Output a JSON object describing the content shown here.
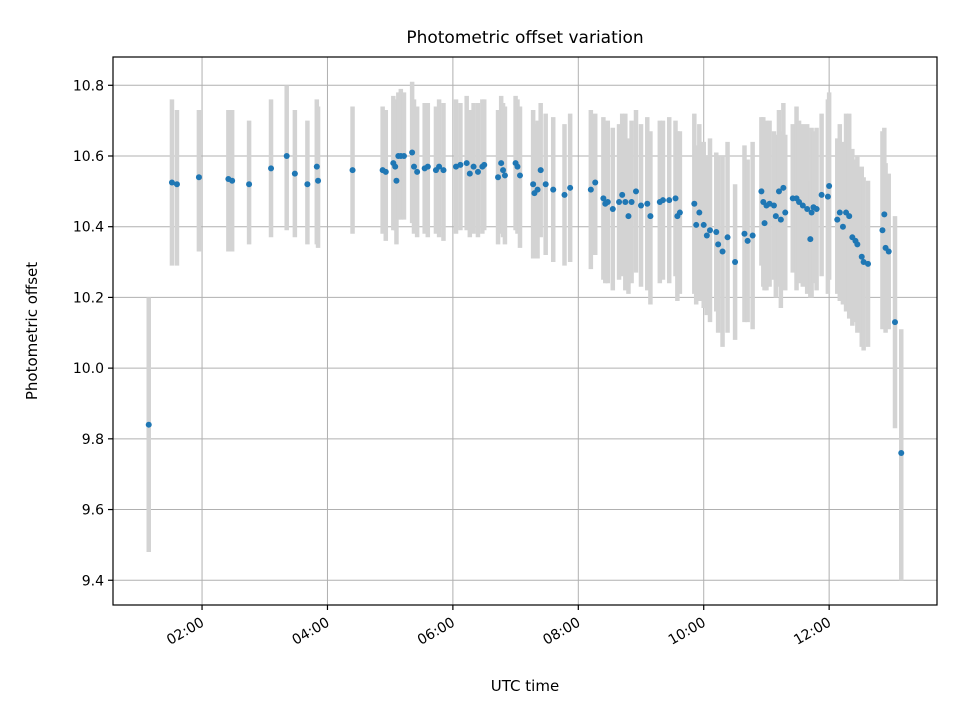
{
  "chart_data": {
    "type": "scatter",
    "title": "Photometric offset variation",
    "xlabel": "UTC time",
    "ylabel": "Photometric offset",
    "x_unit": "hours UTC",
    "xlim": [
      0.58,
      13.72
    ],
    "ylim": [
      9.33,
      10.88
    ],
    "xticks": [
      {
        "value": 2,
        "label": "02:00"
      },
      {
        "value": 4,
        "label": "04:00"
      },
      {
        "value": 6,
        "label": "06:00"
      },
      {
        "value": 8,
        "label": "08:00"
      },
      {
        "value": 10,
        "label": "10:00"
      },
      {
        "value": 12,
        "label": "12:00"
      }
    ],
    "yticks": [
      {
        "value": 9.4,
        "label": "9.4"
      },
      {
        "value": 9.6,
        "label": "9.6"
      },
      {
        "value": 9.8,
        "label": "9.8"
      },
      {
        "value": 10.0,
        "label": "10.0"
      },
      {
        "value": 10.2,
        "label": "10.2"
      },
      {
        "value": 10.4,
        "label": "10.4"
      },
      {
        "value": 10.6,
        "label": "10.6"
      },
      {
        "value": 10.8,
        "label": "10.8"
      }
    ],
    "grid": true,
    "legend": false,
    "colors": {
      "marker": "#1f77b4",
      "errorbar": "#d3d3d3",
      "grid": "#b0b0b0"
    },
    "series": [
      {
        "x": [
          1.15,
          1.52,
          1.6,
          1.95,
          2.42,
          2.48,
          2.75,
          3.1,
          3.35,
          3.48,
          3.68,
          3.83,
          3.85,
          4.4,
          4.88,
          4.93,
          5.05,
          5.08,
          5.1,
          5.13,
          5.17,
          5.22,
          5.35,
          5.38,
          5.43,
          5.55,
          5.6,
          5.73,
          5.78,
          5.85,
          6.05,
          6.12,
          6.22,
          6.27,
          6.33,
          6.4,
          6.47,
          6.5,
          6.72,
          6.77,
          6.8,
          6.83,
          7.0,
          7.03,
          7.07,
          7.28,
          7.3,
          7.35,
          7.4,
          7.48,
          7.6,
          7.78,
          7.87,
          8.2,
          8.27,
          8.4,
          8.43,
          8.47,
          8.55,
          8.65,
          8.7,
          8.75,
          8.8,
          8.85,
          8.92,
          9.0,
          9.1,
          9.15,
          9.3,
          9.35,
          9.45,
          9.55,
          9.58,
          9.62,
          9.85,
          9.88,
          9.93,
          10.0,
          10.05,
          10.1,
          10.2,
          10.23,
          10.3,
          10.38,
          10.5,
          10.65,
          10.7,
          10.78,
          10.92,
          10.95,
          10.97,
          11.0,
          11.05,
          11.12,
          11.15,
          11.2,
          11.23,
          11.27,
          11.3,
          11.42,
          11.48,
          11.52,
          11.58,
          11.65,
          11.7,
          11.72,
          11.75,
          11.8,
          11.88,
          11.98,
          12.0,
          12.13,
          12.17,
          12.22,
          12.27,
          12.32,
          12.37,
          12.42,
          12.45,
          12.52,
          12.55,
          12.62,
          12.85,
          12.88,
          12.9,
          12.95,
          13.05,
          13.15
        ],
        "y": [
          9.84,
          10.525,
          10.52,
          10.54,
          10.535,
          10.53,
          10.52,
          10.565,
          10.6,
          10.55,
          10.52,
          10.57,
          10.53,
          10.56,
          10.56,
          10.555,
          10.58,
          10.57,
          10.53,
          10.6,
          10.6,
          10.6,
          10.61,
          10.57,
          10.555,
          10.565,
          10.57,
          10.56,
          10.57,
          10.56,
          10.57,
          10.575,
          10.58,
          10.55,
          10.57,
          10.555,
          10.57,
          10.575,
          10.54,
          10.58,
          10.56,
          10.545,
          10.58,
          10.57,
          10.545,
          10.52,
          10.495,
          10.505,
          10.56,
          10.52,
          10.505,
          10.49,
          10.51,
          10.505,
          10.525,
          10.48,
          10.465,
          10.47,
          10.45,
          10.47,
          10.49,
          10.47,
          10.43,
          10.47,
          10.5,
          10.46,
          10.465,
          10.43,
          10.47,
          10.475,
          10.475,
          10.48,
          10.43,
          10.44,
          10.465,
          10.405,
          10.44,
          10.405,
          10.375,
          10.39,
          10.385,
          10.35,
          10.33,
          10.37,
          10.3,
          10.38,
          10.36,
          10.375,
          10.5,
          10.47,
          10.41,
          10.46,
          10.465,
          10.46,
          10.43,
          10.5,
          10.42,
          10.51,
          10.44,
          10.48,
          10.48,
          10.47,
          10.46,
          10.45,
          10.365,
          10.44,
          10.455,
          10.45,
          10.49,
          10.485,
          10.515,
          10.42,
          10.44,
          10.4,
          10.44,
          10.43,
          10.37,
          10.36,
          10.35,
          10.315,
          10.3,
          10.295,
          10.39,
          10.435,
          10.34,
          10.33,
          10.13,
          9.76
        ],
        "yerr_low": [
          9.48,
          10.29,
          10.29,
          10.33,
          10.33,
          10.33,
          10.35,
          10.37,
          10.39,
          10.37,
          10.35,
          10.35,
          10.34,
          10.38,
          10.38,
          10.36,
          10.39,
          10.39,
          10.35,
          10.42,
          10.42,
          10.42,
          10.41,
          10.38,
          10.37,
          10.38,
          10.37,
          10.38,
          10.37,
          10.36,
          10.38,
          10.39,
          10.39,
          10.37,
          10.38,
          10.37,
          10.38,
          10.39,
          10.35,
          10.38,
          10.37,
          10.35,
          10.39,
          10.38,
          10.34,
          10.31,
          10.31,
          10.31,
          10.37,
          10.32,
          10.3,
          10.29,
          10.3,
          10.28,
          10.32,
          10.25,
          10.24,
          10.24,
          10.22,
          10.25,
          10.26,
          10.22,
          10.21,
          10.24,
          10.27,
          10.23,
          10.22,
          10.18,
          10.24,
          10.25,
          10.24,
          10.26,
          10.19,
          10.21,
          10.21,
          10.18,
          10.19,
          10.17,
          10.15,
          10.13,
          10.16,
          10.1,
          10.06,
          10.1,
          10.08,
          10.13,
          10.13,
          10.11,
          10.29,
          10.23,
          10.22,
          10.22,
          10.23,
          10.25,
          10.2,
          10.23,
          10.17,
          10.27,
          10.22,
          10.27,
          10.22,
          10.24,
          10.23,
          10.21,
          10.2,
          10.2,
          10.24,
          10.22,
          10.26,
          10.21,
          10.25,
          10.21,
          10.19,
          10.18,
          10.16,
          10.14,
          10.12,
          10.13,
          10.1,
          10.06,
          10.05,
          10.06,
          10.11,
          10.24,
          10.1,
          10.11,
          9.83,
          9.4
        ],
        "yerr_high": [
          10.2,
          10.76,
          10.73,
          10.73,
          10.73,
          10.73,
          10.7,
          10.76,
          10.8,
          10.73,
          10.7,
          10.76,
          10.74,
          10.74,
          10.74,
          10.73,
          10.77,
          10.76,
          10.73,
          10.78,
          10.79,
          10.78,
          10.81,
          10.76,
          10.74,
          10.75,
          10.75,
          10.74,
          10.76,
          10.75,
          10.76,
          10.75,
          10.77,
          10.73,
          10.75,
          10.75,
          10.76,
          10.76,
          10.73,
          10.77,
          10.75,
          10.74,
          10.77,
          10.76,
          10.74,
          10.73,
          10.69,
          10.7,
          10.75,
          10.72,
          10.71,
          10.69,
          10.72,
          10.73,
          10.72,
          10.71,
          10.69,
          10.7,
          10.68,
          10.69,
          10.72,
          10.72,
          10.65,
          10.7,
          10.73,
          10.69,
          10.71,
          10.67,
          10.7,
          10.7,
          10.71,
          10.7,
          10.67,
          10.67,
          10.72,
          10.63,
          10.69,
          10.64,
          10.6,
          10.65,
          10.61,
          10.6,
          10.6,
          10.64,
          10.52,
          10.63,
          10.59,
          10.64,
          10.71,
          10.71,
          10.6,
          10.7,
          10.7,
          10.67,
          10.66,
          10.73,
          10.67,
          10.75,
          10.66,
          10.69,
          10.74,
          10.7,
          10.69,
          10.69,
          10.53,
          10.68,
          10.67,
          10.68,
          10.72,
          10.76,
          10.78,
          10.65,
          10.69,
          10.64,
          10.72,
          10.72,
          10.62,
          10.59,
          10.6,
          10.57,
          10.54,
          10.53,
          10.67,
          10.68,
          10.58,
          10.55,
          10.43,
          10.11
        ]
      }
    ]
  }
}
